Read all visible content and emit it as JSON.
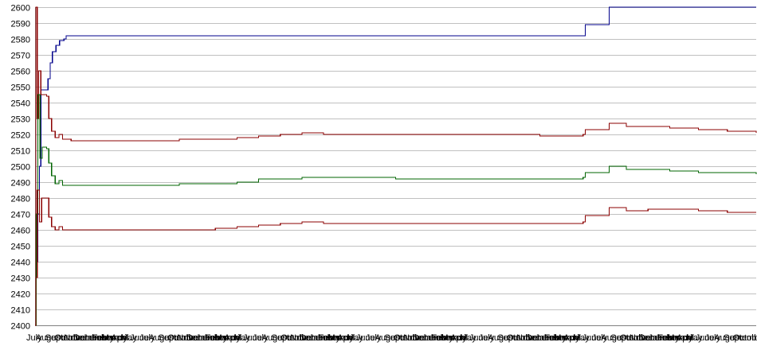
{
  "chart_data": {
    "type": "line",
    "title": "",
    "xlabel": "",
    "ylabel": "",
    "ylim": [
      2400,
      2600
    ],
    "ytick_step": 10,
    "grid": true,
    "legend": "none",
    "x_tick_labels": [
      "July",
      "August",
      "September",
      "October",
      "November",
      "December",
      "January",
      "February",
      "March",
      "April",
      "May",
      "June",
      "July",
      "August",
      "September",
      "October",
      "November",
      "December",
      "January",
      "February",
      "March",
      "April",
      "May",
      "June",
      "July",
      "August",
      "September",
      "October",
      "November",
      "December",
      "January",
      "February",
      "March",
      "April",
      "May",
      "June",
      "July",
      "August",
      "September",
      "October",
      "November",
      "December",
      "January",
      "February",
      "March",
      "April",
      "May",
      "June",
      "July",
      "August",
      "September",
      "October",
      "November",
      "December",
      "January",
      "February",
      "March",
      "April",
      "May",
      "June",
      "July",
      "August",
      "September",
      "October",
      "November",
      "December",
      "January",
      "February",
      "March",
      "April",
      "May",
      "June",
      "July",
      "August",
      "September",
      "October"
    ],
    "x_range": [
      0,
      100
    ],
    "series": [
      {
        "color": "#00008b",
        "points": [
          [
            0,
            2400
          ],
          [
            0.1,
            2440
          ],
          [
            0.35,
            2470
          ],
          [
            0.6,
            2500
          ],
          [
            0.8,
            2548
          ],
          [
            1.6,
            2548
          ],
          [
            1.8,
            2555
          ],
          [
            2.1,
            2565
          ],
          [
            2.4,
            2572
          ],
          [
            2.9,
            2576
          ],
          [
            3.4,
            2579
          ],
          [
            4.0,
            2580
          ],
          [
            4.3,
            2582
          ],
          [
            76.0,
            2582
          ],
          [
            76.3,
            2589
          ],
          [
            79.3,
            2589
          ],
          [
            79.6,
            2600
          ],
          [
            100,
            2600
          ]
        ]
      },
      {
        "color": "#8b0000",
        "points": [
          [
            0,
            2400
          ],
          [
            0.12,
            2600
          ],
          [
            0.3,
            2530
          ],
          [
            0.5,
            2560
          ],
          [
            0.8,
            2545
          ],
          [
            1.6,
            2544
          ],
          [
            1.9,
            2530
          ],
          [
            2.3,
            2522
          ],
          [
            2.8,
            2518
          ],
          [
            3.3,
            2520
          ],
          [
            3.8,
            2517
          ],
          [
            5.0,
            2516
          ],
          [
            10,
            2516
          ],
          [
            15,
            2516
          ],
          [
            20,
            2517
          ],
          [
            25,
            2517
          ],
          [
            28,
            2518
          ],
          [
            31,
            2519
          ],
          [
            34,
            2520
          ],
          [
            37,
            2521
          ],
          [
            40,
            2520
          ],
          [
            45,
            2520
          ],
          [
            50,
            2520
          ],
          [
            55,
            2520
          ],
          [
            60,
            2520
          ],
          [
            65,
            2520
          ],
          [
            70,
            2519
          ],
          [
            74,
            2519
          ],
          [
            76,
            2520
          ],
          [
            76.3,
            2523
          ],
          [
            79.3,
            2523
          ],
          [
            79.6,
            2527
          ],
          [
            82,
            2525
          ],
          [
            85,
            2525
          ],
          [
            88,
            2524
          ],
          [
            92,
            2523
          ],
          [
            96,
            2522
          ],
          [
            100,
            2521
          ]
        ]
      },
      {
        "color": "#006400",
        "points": [
          [
            0,
            2400
          ],
          [
            0.15,
            2470
          ],
          [
            0.4,
            2545
          ],
          [
            0.7,
            2505
          ],
          [
            1.0,
            2512
          ],
          [
            1.6,
            2511
          ],
          [
            1.9,
            2502
          ],
          [
            2.3,
            2494
          ],
          [
            2.8,
            2489
          ],
          [
            3.3,
            2491
          ],
          [
            3.8,
            2488
          ],
          [
            5.0,
            2488
          ],
          [
            10,
            2488
          ],
          [
            15,
            2488
          ],
          [
            20,
            2489
          ],
          [
            25,
            2489
          ],
          [
            28,
            2490
          ],
          [
            31,
            2492
          ],
          [
            34,
            2492
          ],
          [
            37,
            2493
          ],
          [
            40,
            2493
          ],
          [
            45,
            2493
          ],
          [
            50,
            2492
          ],
          [
            55,
            2492
          ],
          [
            60,
            2492
          ],
          [
            65,
            2492
          ],
          [
            70,
            2492
          ],
          [
            74,
            2492
          ],
          [
            76,
            2493
          ],
          [
            76.3,
            2496
          ],
          [
            79.3,
            2496
          ],
          [
            79.6,
            2500
          ],
          [
            82,
            2498
          ],
          [
            85,
            2498
          ],
          [
            88,
            2497
          ],
          [
            92,
            2496
          ],
          [
            96,
            2496
          ],
          [
            100,
            2495
          ]
        ]
      },
      {
        "color": "#8b0000",
        "points": [
          [
            0,
            2400
          ],
          [
            0.1,
            2430
          ],
          [
            0.3,
            2485
          ],
          [
            0.6,
            2465
          ],
          [
            0.9,
            2480
          ],
          [
            1.6,
            2480
          ],
          [
            1.9,
            2468
          ],
          [
            2.3,
            2462
          ],
          [
            2.8,
            2460
          ],
          [
            3.3,
            2462
          ],
          [
            3.8,
            2460
          ],
          [
            5.0,
            2460
          ],
          [
            10,
            2460
          ],
          [
            15,
            2460
          ],
          [
            20,
            2460
          ],
          [
            25,
            2461
          ],
          [
            28,
            2462
          ],
          [
            31,
            2463
          ],
          [
            34,
            2464
          ],
          [
            37,
            2465
          ],
          [
            40,
            2464
          ],
          [
            45,
            2464
          ],
          [
            50,
            2464
          ],
          [
            55,
            2464
          ],
          [
            60,
            2464
          ],
          [
            65,
            2464
          ],
          [
            70,
            2464
          ],
          [
            74,
            2464
          ],
          [
            76,
            2465
          ],
          [
            76.3,
            2469
          ],
          [
            79.3,
            2469
          ],
          [
            79.6,
            2474
          ],
          [
            82,
            2472
          ],
          [
            85,
            2473
          ],
          [
            88,
            2473
          ],
          [
            92,
            2472
          ],
          [
            96,
            2471
          ],
          [
            100,
            2471
          ]
        ]
      }
    ]
  }
}
